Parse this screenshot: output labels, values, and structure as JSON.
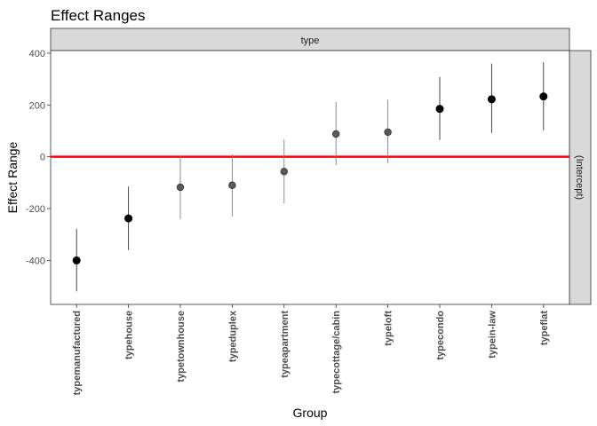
{
  "chart_data": {
    "type": "scatter",
    "title": "Effect Ranges",
    "xlabel": "Group",
    "ylabel": "Effect Range",
    "facet_top": "type",
    "facet_right": "(Intercept)",
    "ylim": [
      -570,
      410
    ],
    "yticks": [
      -400,
      -200,
      0,
      200,
      400
    ],
    "reference_line": {
      "y": 0,
      "color": "#ff0000"
    },
    "grid": false,
    "categories": [
      "typemanufactured",
      "typehouse",
      "typetownhouse",
      "typeduplex",
      "typeapartment",
      "typecottage/cabin",
      "typeloft",
      "typecondo",
      "typein-law",
      "typeflat"
    ],
    "series": [
      {
        "estimate": [
          -400,
          -238,
          -118,
          -110,
          -57,
          88,
          95,
          185,
          222,
          233
        ],
        "lower": [
          -520,
          -360,
          -240,
          -230,
          -180,
          -32,
          -25,
          65,
          92,
          102
        ],
        "upper": [
          -278,
          -115,
          3,
          10,
          67,
          212,
          220,
          308,
          360,
          365
        ],
        "significant": [
          true,
          true,
          false,
          false,
          false,
          false,
          false,
          true,
          true,
          true
        ]
      }
    ],
    "colors": {
      "significant": "#000000",
      "not_significant": "#595959",
      "zero_line": "#ff0000"
    }
  }
}
